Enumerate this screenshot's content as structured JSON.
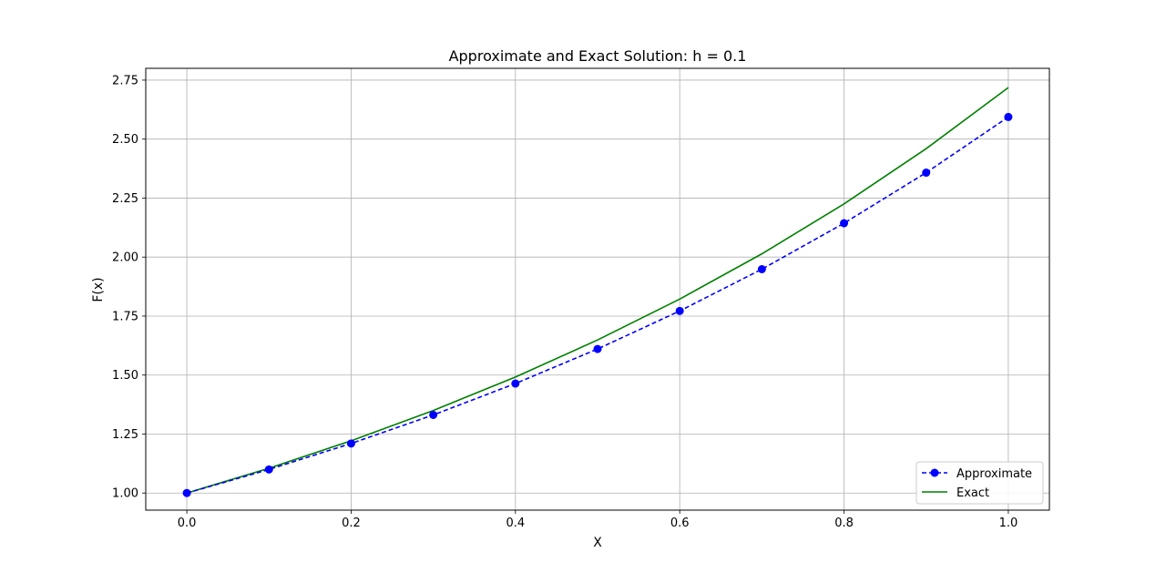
{
  "chart_data": {
    "type": "line",
    "title": "Approximate and Exact Solution: h = 0.1",
    "xlabel": "X",
    "ylabel": "F(x)",
    "xlim": [
      -0.05,
      1.05
    ],
    "ylim": [
      0.9275,
      2.8
    ],
    "xticks": [
      0.0,
      0.2,
      0.4,
      0.6,
      0.8,
      1.0
    ],
    "xtick_labels": [
      "0.0",
      "0.2",
      "0.4",
      "0.6",
      "0.8",
      "1.0"
    ],
    "yticks": [
      1.0,
      1.25,
      1.5,
      1.75,
      2.0,
      2.25,
      2.5,
      2.75
    ],
    "ytick_labels": [
      "1.00",
      "1.25",
      "1.50",
      "1.75",
      "2.00",
      "2.25",
      "2.50",
      "2.75"
    ],
    "grid": true,
    "legend_position": "bottom-right",
    "series": [
      {
        "name": "Approximate",
        "style": "dashed-markers",
        "color": "#0000ff",
        "x": [
          0.0,
          0.1,
          0.2,
          0.3,
          0.4,
          0.5,
          0.6,
          0.7,
          0.8,
          0.9,
          1.0
        ],
        "y": [
          1.0,
          1.1,
          1.21,
          1.331,
          1.4641,
          1.6105,
          1.7716,
          1.9487,
          2.1436,
          2.3579,
          2.5937
        ]
      },
      {
        "name": "Exact",
        "style": "solid",
        "color": "#008000",
        "x": [
          0.0,
          0.1,
          0.2,
          0.3,
          0.4,
          0.5,
          0.6,
          0.7,
          0.8,
          0.9,
          1.0
        ],
        "y": [
          1.0,
          1.1052,
          1.2214,
          1.3499,
          1.4918,
          1.6487,
          1.8221,
          2.0138,
          2.2255,
          2.4596,
          2.7183
        ]
      }
    ]
  }
}
